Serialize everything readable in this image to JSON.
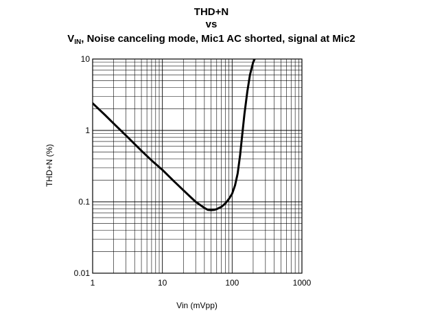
{
  "chart_data": {
    "type": "line",
    "title": "THD+N",
    "title_line2": "vs",
    "subtitle_main": "V",
    "subtitle_sub": "IN",
    "subtitle_rest": ", Noise canceling mode, Mic1 AC shorted, signal at Mic2",
    "xlabel": "Vin (mVpp)",
    "ylabel": "THD+N (%)",
    "xscale": "log",
    "yscale": "log",
    "xlim": [
      1,
      1000
    ],
    "ylim": [
      0.01,
      10
    ],
    "grid": true,
    "x_tick_labels": [
      "1",
      "10",
      "100",
      "1000"
    ],
    "x_tick_values": [
      1,
      10,
      100,
      1000
    ],
    "y_tick_labels": [
      "0.01",
      "0.1",
      "1",
      "10"
    ],
    "y_tick_values": [
      0.01,
      0.1,
      1,
      10
    ],
    "series": [
      {
        "color": "#000000",
        "x": [
          1,
          1.5,
          2,
          3,
          5,
          7,
          10,
          15,
          20,
          25,
          30,
          35,
          40,
          45,
          50,
          55,
          60,
          70,
          80,
          90,
          100,
          110,
          120,
          130,
          140,
          150,
          165,
          180,
          200,
          215
        ],
        "y": [
          2.4,
          1.65,
          1.25,
          0.85,
          0.52,
          0.38,
          0.28,
          0.19,
          0.145,
          0.118,
          0.1,
          0.09,
          0.082,
          0.077,
          0.0765,
          0.077,
          0.079,
          0.085,
          0.095,
          0.11,
          0.13,
          0.17,
          0.25,
          0.45,
          0.9,
          1.7,
          3.5,
          6.0,
          9.0,
          10.5
        ]
      }
    ]
  }
}
